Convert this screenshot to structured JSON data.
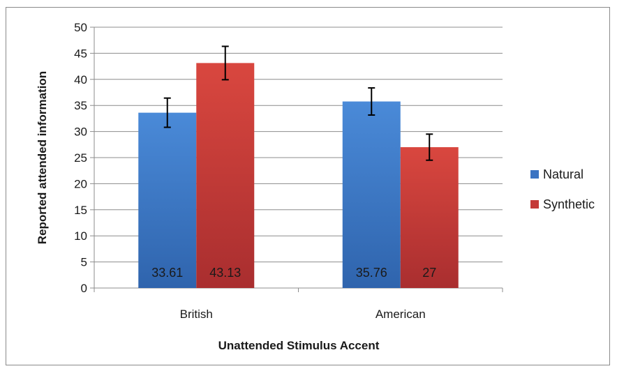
{
  "chart_data": {
    "type": "bar",
    "title": "",
    "xlabel": "Unattended Stimulus Accent",
    "ylabel": "Reported attended information",
    "categories": [
      "British",
      "American"
    ],
    "ylim": [
      0,
      50
    ],
    "yticks": [
      0,
      5,
      10,
      15,
      20,
      25,
      30,
      35,
      40,
      45,
      50
    ],
    "grid": true,
    "legend_position": "right",
    "series": [
      {
        "name": "Natural",
        "color": "#3a73c2",
        "values": [
          33.61,
          35.76
        ],
        "labels": [
          "33.61",
          "35.76"
        ],
        "error": [
          2.8,
          2.6
        ]
      },
      {
        "name": "Synthetic",
        "color": "#c43a38",
        "values": [
          43.13,
          27
        ],
        "labels": [
          "43.13",
          "27"
        ],
        "error": [
          3.2,
          2.5
        ]
      }
    ]
  }
}
